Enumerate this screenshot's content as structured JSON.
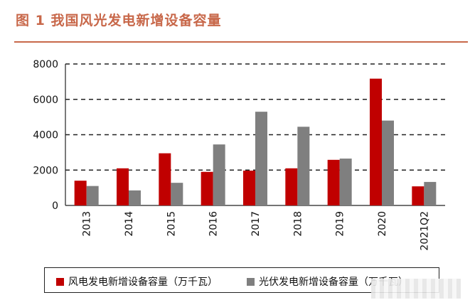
{
  "figure": {
    "title": "图 1  我国风光发电新增设备容量"
  },
  "colors": {
    "title": "#c8684a",
    "wind": "#c00000",
    "solar": "#7f7f7f"
  },
  "chart_data": {
    "type": "bar",
    "title": "",
    "xlabel": "",
    "ylabel": "",
    "categories": [
      "2013",
      "2014",
      "2015",
      "2016",
      "2017",
      "2018",
      "2019",
      "2020",
      "2021Q2"
    ],
    "series": [
      {
        "name": "风电发电新增设备容量（万千瓦）",
        "values": [
          1400,
          2100,
          2950,
          1900,
          1970,
          2100,
          2580,
          7170,
          1080
        ]
      },
      {
        "name": "光伏发电新增设备容量（万千瓦）",
        "values": [
          1100,
          850,
          1280,
          3450,
          5300,
          4450,
          2650,
          4800,
          1330
        ]
      }
    ],
    "ylim": [
      0,
      8000
    ],
    "yticks": [
      0,
      2000,
      4000,
      6000,
      8000
    ],
    "grid": "horizontal dashed",
    "legend": "bottom"
  }
}
